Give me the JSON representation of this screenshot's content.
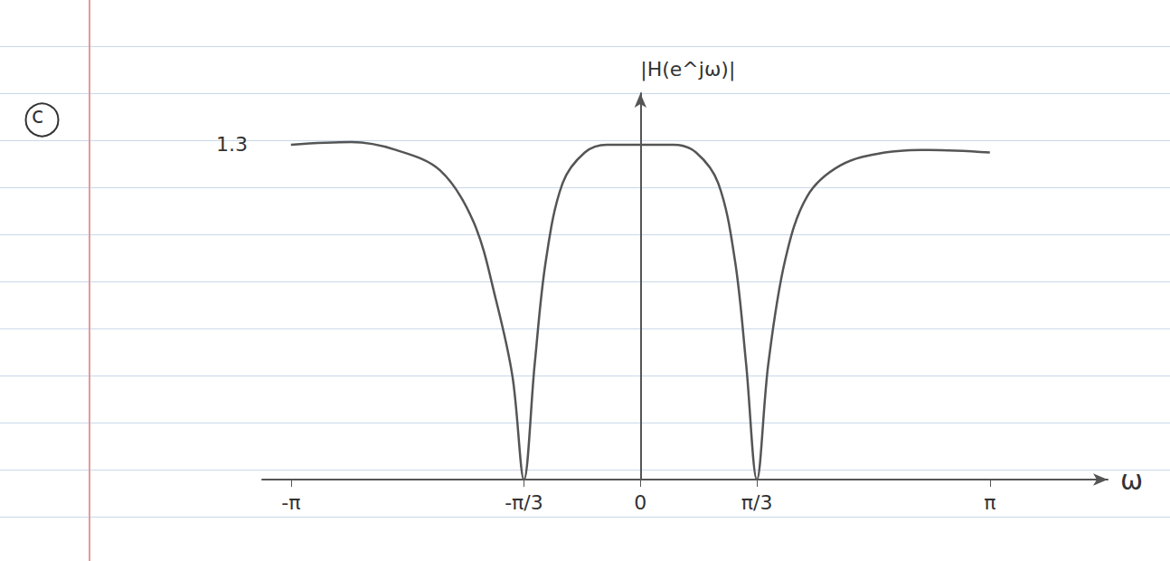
{
  "chart_data": {
    "type": "line",
    "panel_label": "c",
    "y_label": "|H(e^jω)|",
    "x_label": "ω",
    "x": [
      -3.1416,
      -2.6,
      -2.2,
      -1.8,
      -1.5,
      -1.3,
      -1.15,
      -1.047,
      -0.95,
      -0.85,
      -0.7,
      -0.5,
      -0.3,
      0,
      0.3,
      0.5,
      0.7,
      0.85,
      0.95,
      1.047,
      1.15,
      1.3,
      1.5,
      1.8,
      2.2,
      2.6,
      3.1416
    ],
    "values": [
      1.3,
      1.31,
      1.28,
      1.2,
      1.0,
      0.7,
      0.4,
      0,
      0.45,
      0.85,
      1.15,
      1.27,
      1.3,
      1.3,
      1.3,
      1.27,
      1.15,
      0.85,
      0.45,
      0,
      0.45,
      0.85,
      1.1,
      1.22,
      1.27,
      1.28,
      1.27
    ],
    "color": "#555555",
    "marker": "none",
    "line_style": "solid",
    "xlim": [
      -3.4,
      4.2
    ],
    "xticks": [
      {
        "value": -3.1416,
        "label": "-π"
      },
      {
        "value": -1.0472,
        "label": "-π/3"
      },
      0,
      {
        "value": 1.0472,
        "label": "π/3"
      },
      {
        "value": 3.1416,
        "label": "π"
      }
    ],
    "ylim": [
      0,
      1.5
    ],
    "yticks": [
      1.3
    ],
    "grid": false
  }
}
